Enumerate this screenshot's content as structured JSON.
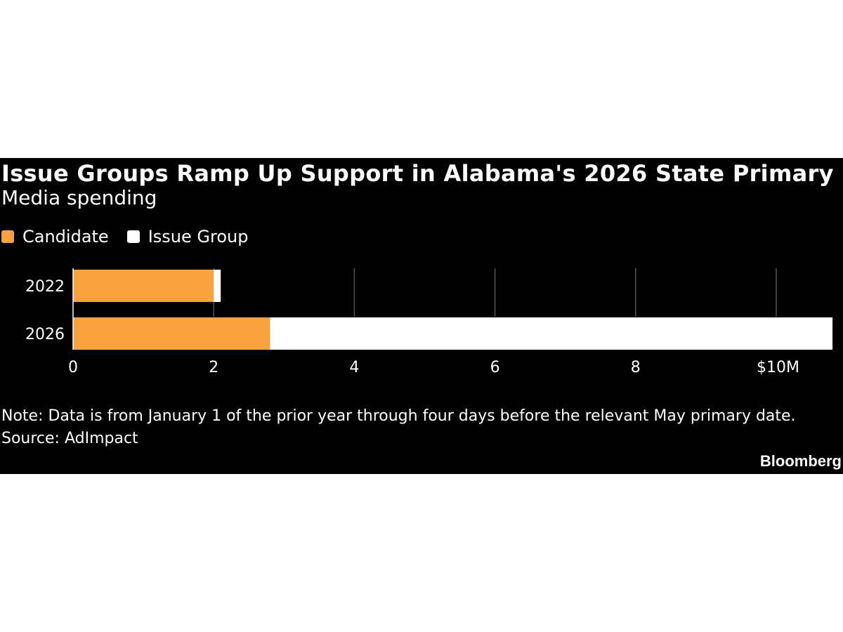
{
  "chart_data": {
    "type": "bar",
    "orientation": "horizontal",
    "stacked": true,
    "title": "Issue Groups Ramp Up Support in Alabama's 2026 State Primary",
    "subtitle": "Media spending",
    "categories": [
      "2022",
      "2026"
    ],
    "series": [
      {
        "name": "Candidate",
        "color": "#f9a13a",
        "values": [
          2.0,
          2.8
        ]
      },
      {
        "name": "Issue Group",
        "color": "#ffffff",
        "values": [
          0.1,
          8.0
        ]
      }
    ],
    "xlim": [
      0,
      10.8
    ],
    "xticks": [
      0,
      2,
      4,
      6,
      8,
      10
    ],
    "xtick_labels": [
      "0",
      "2",
      "4",
      "6",
      "8",
      "$10M"
    ],
    "grid": true,
    "legend_position": "top-left",
    "note": "Note: Data is from January 1 of the prior year through four days before the relevant May primary date.",
    "source": "Source: AdImpact",
    "brand": "Bloomberg"
  },
  "colors": {
    "background": "#000000",
    "gridline": "#555555",
    "axis": "#ffffff"
  }
}
